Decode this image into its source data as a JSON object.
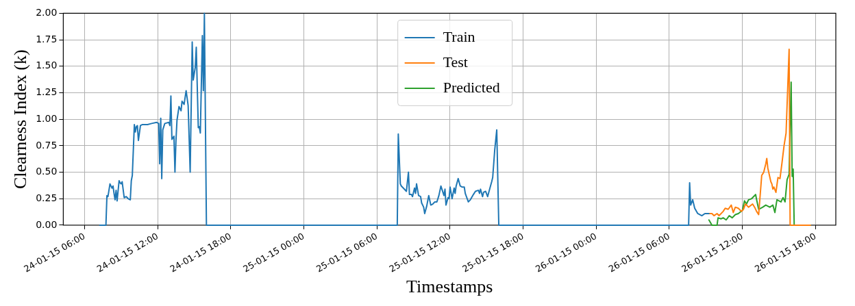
{
  "chart_data": {
    "type": "line",
    "xlabel": "Timestamps",
    "ylabel": "Clearness Index (k)",
    "legend": "top",
    "grid": true,
    "line_style": "solid",
    "marker": "none",
    "xlim": [
      "--01-24T04:15",
      "--01-26T19:40"
    ],
    "xticks": [
      {
        "value": "--01-24T06:00",
        "label": "24-01-15 06:00"
      },
      {
        "value": "--01-24T12:00",
        "label": "24-01-15 12:00"
      },
      {
        "value": "--01-24T18:00",
        "label": "24-01-15 18:00"
      },
      {
        "value": "--01-25T00:00",
        "label": "25-01-15 00:00"
      },
      {
        "value": "--01-25T06:00",
        "label": "25-01-15 06:00"
      },
      {
        "value": "--01-25T12:00",
        "label": "25-01-15 12:00"
      },
      {
        "value": "--01-25T18:00",
        "label": "25-01-15 18:00"
      },
      {
        "value": "--01-26T00:00",
        "label": "26-01-15 00:00"
      },
      {
        "value": "--01-26T06:00",
        "label": "26-01-15 06:00"
      },
      {
        "value": "--01-26T12:00",
        "label": "26-01-15 12:00"
      },
      {
        "value": "--01-26T18:00",
        "label": "26-01-15 18:00"
      }
    ],
    "ylim": [
      0,
      2
    ],
    "yticks": [
      {
        "value": 0,
        "label": "0.00"
      },
      {
        "value": 0.25,
        "label": "0.25"
      },
      {
        "value": 0.5,
        "label": "0.50"
      },
      {
        "value": 0.75,
        "label": "0.75"
      },
      {
        "value": 1,
        "label": "1.00"
      },
      {
        "value": 1.25,
        "label": "1.25"
      },
      {
        "value": 1.5,
        "label": "1.50"
      },
      {
        "value": 1.75,
        "label": "1.75"
      },
      {
        "value": 2,
        "label": "2.00"
      }
    ],
    "series": [
      {
        "name": "Train",
        "color": "#1f77b4",
        "x": [
          "--01-24T07:15",
          "--01-24T07:45",
          "--01-24T07:50",
          "--01-24T07:55",
          "--01-24T08:05",
          "--01-24T08:15",
          "--01-24T08:20",
          "--01-24T08:25",
          "--01-24T08:30",
          "--01-24T08:35",
          "--01-24T08:40",
          "--01-24T08:50",
          "--01-24T08:55",
          "--01-24T09:00",
          "--01-24T09:05",
          "--01-24T09:15",
          "--01-24T09:25",
          "--01-24T09:35",
          "--01-24T09:45",
          "--01-24T09:50",
          "--01-24T09:55",
          "--01-24T10:05",
          "--01-24T10:10",
          "--01-24T10:15",
          "--01-24T10:20",
          "--01-24T10:25",
          "--01-24T10:35",
          "--01-24T10:45",
          "--01-24T11:10",
          "--01-24T11:30",
          "--01-24T11:55",
          "--01-24T12:05",
          "--01-24T12:10",
          "--01-24T12:15",
          "--01-24T12:20",
          "--01-24T12:25",
          "--01-24T12:35",
          "--01-24T12:55",
          "--01-24T13:00",
          "--01-24T13:05",
          "--01-24T13:10",
          "--01-24T13:20",
          "--01-24T13:25",
          "--01-24T13:30",
          "--01-24T13:35",
          "--01-24T13:45",
          "--01-24T13:55",
          "--01-24T14:00",
          "--01-24T14:10",
          "--01-24T14:20",
          "--01-24T14:30",
          "--01-24T14:40",
          "--01-24T14:50",
          "--01-24T14:55",
          "--01-24T15:05",
          "--01-24T15:10",
          "--01-24T15:20",
          "--01-24T15:25",
          "--01-24T15:30",
          "--01-24T15:40",
          "--01-24T15:45",
          "--01-24T15:50",
          "--01-24T16:00",
          "--01-25T07:40",
          "--01-25T07:45",
          "--01-25T07:55",
          "--01-25T08:00",
          "--01-25T08:10",
          "--01-25T08:25",
          "--01-25T08:35",
          "--01-25T08:40",
          "--01-25T08:50",
          "--01-25T08:55",
          "--01-25T09:05",
          "--01-25T09:10",
          "--01-25T09:15",
          "--01-25T09:25",
          "--01-25T09:35",
          "--01-25T09:40",
          "--01-25T09:50",
          "--01-25T09:55",
          "--01-25T10:05",
          "--01-25T10:15",
          "--01-25T10:25",
          "--01-25T10:35",
          "--01-25T10:45",
          "--01-25T10:55",
          "--01-25T11:05",
          "--01-25T11:15",
          "--01-25T11:20",
          "--01-25T11:30",
          "--01-25T11:35",
          "--01-25T11:40",
          "--01-25T11:50",
          "--01-25T11:55",
          "--01-25T12:00",
          "--01-25T12:10",
          "--01-25T12:20",
          "--01-25T12:25",
          "--01-25T12:30",
          "--01-25T12:40",
          "--01-25T12:50",
          "--01-25T13:00",
          "--01-25T13:10",
          "--01-25T13:15",
          "--01-25T13:30",
          "--01-25T13:40",
          "--01-25T13:55",
          "--01-25T14:05",
          "--01-25T14:20",
          "--01-25T14:25",
          "--01-25T14:30",
          "--01-25T14:40",
          "--01-25T14:45",
          "--01-25T14:55",
          "--01-25T15:05",
          "--01-25T15:15",
          "--01-25T15:25",
          "--01-25T15:30",
          "--01-25T15:40",
          "--01-25T15:50",
          "--01-25T16:00",
          "--01-26T07:35",
          "--01-26T07:40",
          "--01-26T07:45",
          "--01-26T07:55",
          "--01-26T08:05",
          "--01-26T08:20",
          "--01-26T08:40",
          "--01-26T08:55",
          "--01-26T09:15"
        ],
        "values": [
          0,
          0,
          0.28,
          0.27,
          0.39,
          0.35,
          0.37,
          0.3,
          0.24,
          0.33,
          0.23,
          0.42,
          0.4,
          0.39,
          0.41,
          0.26,
          0.27,
          0.25,
          0.24,
          0.42,
          0.47,
          0.95,
          0.88,
          0.93,
          0.94,
          0.8,
          0.94,
          0.95,
          0.95,
          0.96,
          0.97,
          0.96,
          0.58,
          1.01,
          0.44,
          0.9,
          0.96,
          0.97,
          0.94,
          1.22,
          0.81,
          0.84,
          0.5,
          0.8,
          0.99,
          1.12,
          1.08,
          1.17,
          1.14,
          1.27,
          1.13,
          0.5,
          1.73,
          1.37,
          1.49,
          1.68,
          0.92,
          0.93,
          0.87,
          1.79,
          1.27,
          2,
          0,
          0,
          0.86,
          0.39,
          0.37,
          0.35,
          0.32,
          0.5,
          0.29,
          0.29,
          0.27,
          0.35,
          0.3,
          0.39,
          0.28,
          0.27,
          0.21,
          0.17,
          0.11,
          0.18,
          0.28,
          0.19,
          0.2,
          0.22,
          0.22,
          0.28,
          0.37,
          0.34,
          0.28,
          0.34,
          0.19,
          0.26,
          0.25,
          0.36,
          0.25,
          0.35,
          0.3,
          0.37,
          0.44,
          0.37,
          0.36,
          0.36,
          0.3,
          0.22,
          0.24,
          0.29,
          0.32,
          0.33,
          0.3,
          0.34,
          0.27,
          0.31,
          0.32,
          0.27,
          0.34,
          0.41,
          0.45,
          0.71,
          0.9,
          0,
          0,
          0.4,
          0.19,
          0.24,
          0.16,
          0.11,
          0.09,
          0.11,
          0.11
        ]
      },
      {
        "name": "Test",
        "color": "#ff7f0e",
        "x": [
          "--01-26T09:15",
          "--01-26T09:30",
          "--01-26T09:40",
          "--01-26T09:55",
          "--01-26T10:05",
          "--01-26T10:25",
          "--01-26T10:35",
          "--01-26T10:50",
          "--01-26T11:05",
          "--01-26T11:15",
          "--01-26T11:25",
          "--01-26T11:40",
          "--01-26T11:55",
          "--01-26T12:05",
          "--01-26T12:15",
          "--01-26T12:30",
          "--01-26T12:50",
          "--01-26T13:00",
          "--01-26T13:10",
          "--01-26T13:20",
          "--01-26T13:35",
          "--01-26T13:45",
          "--01-26T13:55",
          "--01-26T14:00",
          "--01-26T14:05",
          "--01-26T14:20",
          "--01-26T14:25",
          "--01-26T14:30",
          "--01-26T14:35",
          "--01-26T14:45",
          "--01-26T14:55",
          "--01-26T15:05",
          "--01-26T15:15",
          "--01-26T15:25",
          "--01-26T15:35",
          "--01-26T15:50",
          "--01-26T15:55",
          "--01-26T17:35"
        ],
        "values": [
          0.11,
          0.11,
          0.09,
          0.11,
          0.09,
          0.13,
          0.16,
          0.15,
          0.19,
          0.12,
          0.17,
          0.16,
          0.13,
          0.15,
          0.2,
          0.17,
          0.2,
          0.17,
          0.13,
          0.1,
          0.47,
          0.5,
          0.58,
          0.63,
          0.54,
          0.41,
          0.39,
          0.34,
          0.36,
          0.31,
          0.45,
          0.44,
          0.59,
          0.75,
          0.87,
          1.66,
          0,
          0
        ]
      },
      {
        "name": "Predicted",
        "color": "#2ca02c",
        "x": [
          "--01-26T09:15",
          "--01-26T09:30",
          "--01-26T09:55",
          "--01-26T10:00",
          "--01-26T10:15",
          "--01-26T10:25",
          "--01-26T10:40",
          "--01-26T10:55",
          "--01-26T11:10",
          "--01-26T11:25",
          "--01-26T11:40",
          "--01-26T12:00",
          "--01-26T12:10",
          "--01-26T12:20",
          "--01-26T12:30",
          "--01-26T12:45",
          "--01-26T12:55",
          "--01-26T13:05",
          "--01-26T13:10",
          "--01-26T13:20",
          "--01-26T13:40",
          "--01-26T13:55",
          "--01-26T14:15",
          "--01-26T14:30",
          "--01-26T14:40",
          "--01-26T14:50",
          "--01-26T15:10",
          "--01-26T15:20",
          "--01-26T15:30",
          "--01-26T15:40",
          "--01-26T15:50",
          "--01-26T16:00",
          "--01-26T16:05",
          "--01-26T16:10",
          "--01-26T16:15",
          "--01-26T17:35"
        ],
        "values": [
          0.05,
          0,
          0,
          0.07,
          0.06,
          0.07,
          0.05,
          0.09,
          0.07,
          0.1,
          0.11,
          0.14,
          0.23,
          0.2,
          0.24,
          0.25,
          0.27,
          0.29,
          0.24,
          0.15,
          0.17,
          0.19,
          0.17,
          0.19,
          0.12,
          0.24,
          0.22,
          0.26,
          0.22,
          0.43,
          0.48,
          1.35,
          0.46,
          0.53,
          0,
          0
        ]
      }
    ]
  }
}
